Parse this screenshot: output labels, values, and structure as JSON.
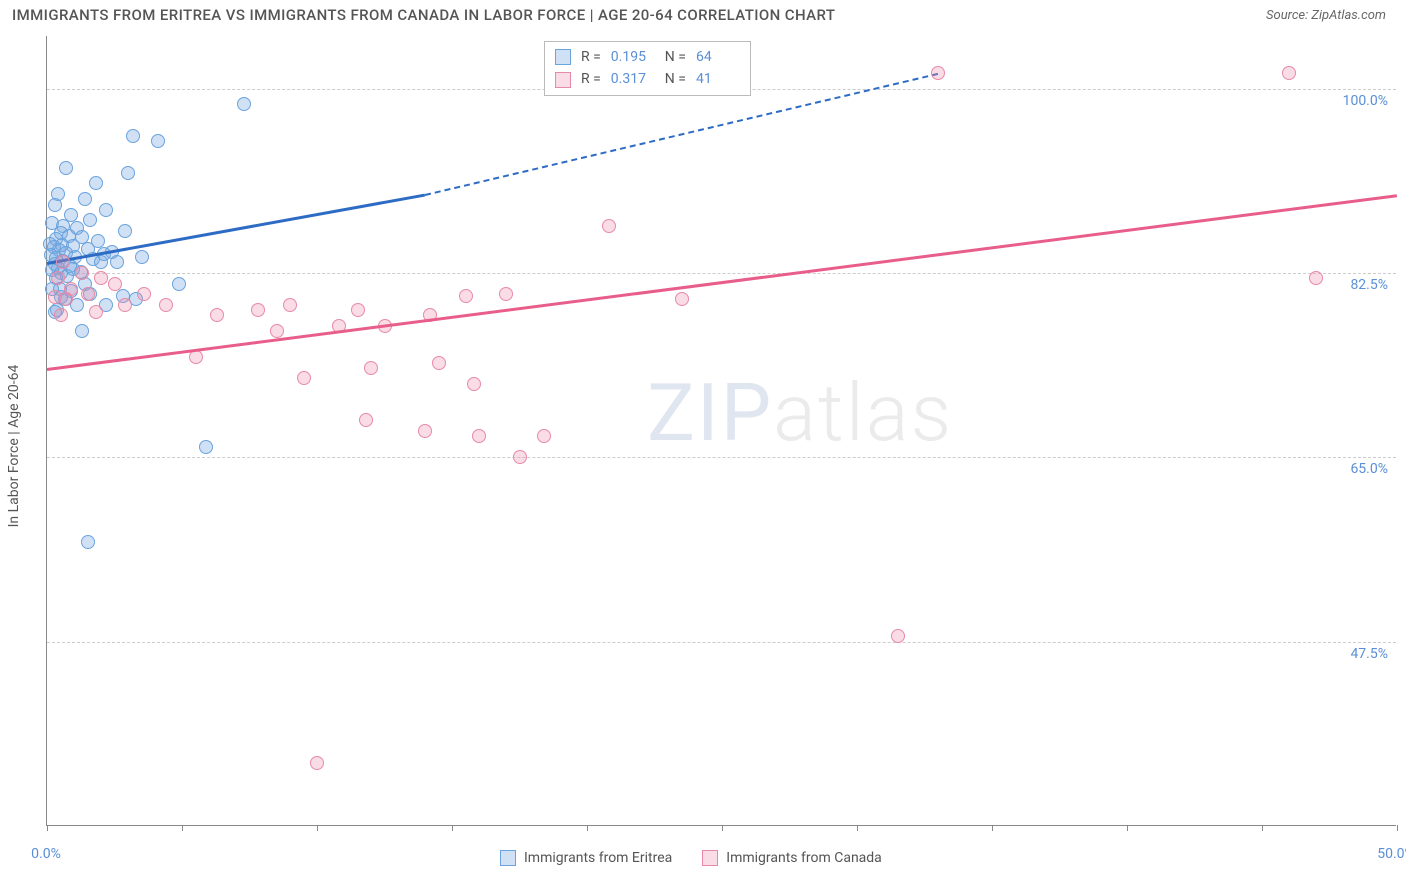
{
  "title": "IMMIGRANTS FROM ERITREA VS IMMIGRANTS FROM CANADA IN LABOR FORCE | AGE 20-64 CORRELATION CHART",
  "source": "Source: ZipAtlas.com",
  "y_axis_label": "In Labor Force | Age 20-64",
  "watermark": {
    "text1": "ZIP",
    "text2": "atlas"
  },
  "chart": {
    "type": "scatter-correlation",
    "background_color": "#ffffff",
    "grid_color": "#cccccc",
    "axis_color": "#888888",
    "text_color": "#555555",
    "value_color": "#5a8fd6",
    "marker_radius": 7,
    "marker_stroke_width": 1.2,
    "x_range": [
      0.0,
      50.0
    ],
    "y_range": [
      30.0,
      105.0
    ],
    "x_ticks": [
      0.0,
      5.0,
      10.0,
      15.0,
      20.0,
      25.0,
      30.0,
      35.0,
      40.0,
      45.0,
      50.0
    ],
    "x_tick_labels": {
      "0": "0.0%",
      "50": "50.0%"
    },
    "y_gridlines": [
      47.5,
      65.0,
      82.5,
      100.0
    ],
    "y_tick_labels": [
      "47.5%",
      "65.0%",
      "82.5%",
      "100.0%"
    ],
    "series": [
      {
        "name": "Immigrants from Eritrea",
        "color_fill": "rgba(120,170,225,0.35)",
        "color_stroke": "#6aa3dd",
        "trend_color": "#2d6bc4",
        "R_label": "R =",
        "R": "0.195",
        "N_label": "N =",
        "N": "64",
        "trend_start": [
          0.0,
          83.5
        ],
        "trend_solid_end": [
          14.0,
          90.0
        ],
        "trend_dashed_end": [
          33.0,
          101.5
        ],
        "points": [
          [
            7.3,
            98.5
          ],
          [
            3.2,
            95.5
          ],
          [
            4.1,
            95.0
          ],
          [
            0.7,
            92.5
          ],
          [
            3.0,
            92.0
          ],
          [
            1.8,
            91.0
          ],
          [
            0.4,
            90.0
          ],
          [
            1.4,
            89.5
          ],
          [
            0.3,
            89.0
          ],
          [
            2.2,
            88.5
          ],
          [
            0.9,
            88.0
          ],
          [
            1.6,
            87.5
          ],
          [
            0.2,
            87.2
          ],
          [
            0.6,
            87.0
          ],
          [
            1.1,
            86.8
          ],
          [
            2.9,
            86.5
          ],
          [
            0.5,
            86.3
          ],
          [
            0.8,
            86.0
          ],
          [
            1.3,
            85.9
          ],
          [
            0.35,
            85.7
          ],
          [
            1.9,
            85.5
          ],
          [
            0.1,
            85.3
          ],
          [
            0.55,
            85.2
          ],
          [
            0.95,
            85.1
          ],
          [
            0.25,
            85.0
          ],
          [
            1.5,
            84.8
          ],
          [
            0.45,
            84.7
          ],
          [
            2.4,
            84.5
          ],
          [
            0.7,
            84.4
          ],
          [
            0.15,
            84.2
          ],
          [
            1.05,
            84.0
          ],
          [
            0.32,
            83.9
          ],
          [
            1.7,
            83.8
          ],
          [
            0.6,
            83.6
          ],
          [
            3.5,
            84.0
          ],
          [
            0.28,
            83.4
          ],
          [
            0.85,
            83.2
          ],
          [
            0.42,
            83.0
          ],
          [
            2.0,
            83.5
          ],
          [
            0.18,
            82.8
          ],
          [
            1.25,
            82.6
          ],
          [
            0.52,
            82.5
          ],
          [
            0.75,
            82.2
          ],
          [
            0.34,
            82.0
          ],
          [
            2.6,
            83.5
          ],
          [
            1.4,
            81.5
          ],
          [
            0.48,
            81.0
          ],
          [
            0.2,
            81.0
          ],
          [
            0.9,
            80.8
          ],
          [
            4.9,
            81.5
          ],
          [
            1.6,
            80.5
          ],
          [
            2.8,
            80.3
          ],
          [
            0.65,
            80.0
          ],
          [
            1.1,
            79.5
          ],
          [
            0.38,
            79.0
          ],
          [
            2.2,
            79.5
          ],
          [
            0.3,
            78.8
          ],
          [
            0.95,
            82.9
          ],
          [
            3.3,
            80.0
          ],
          [
            1.3,
            77.0
          ],
          [
            0.5,
            80.2
          ],
          [
            5.9,
            66.0
          ],
          [
            1.5,
            57.0
          ],
          [
            2.1,
            84.3
          ]
        ]
      },
      {
        "name": "Immigrants from Canada",
        "color_fill": "rgba(235,140,170,0.30)",
        "color_stroke": "#e88aa7",
        "trend_color": "#e85d8a",
        "R_label": "R =",
        "R": "0.317",
        "N_label": "N =",
        "N": "41",
        "trend_start": [
          0.0,
          73.5
        ],
        "trend_solid_end": [
          50.0,
          90.0
        ],
        "trend_dashed_end": null,
        "points": [
          [
            33.0,
            101.5
          ],
          [
            46.0,
            101.5
          ],
          [
            20.8,
            87.0
          ],
          [
            0.6,
            83.5
          ],
          [
            1.3,
            82.5
          ],
          [
            0.4,
            82.0
          ],
          [
            2.0,
            82.0
          ],
          [
            0.9,
            81.0
          ],
          [
            1.5,
            80.5
          ],
          [
            0.3,
            80.2
          ],
          [
            2.5,
            81.5
          ],
          [
            3.6,
            80.5
          ],
          [
            0.7,
            80.0
          ],
          [
            17.0,
            80.5
          ],
          [
            15.5,
            80.3
          ],
          [
            9.0,
            79.5
          ],
          [
            4.4,
            79.5
          ],
          [
            2.9,
            79.5
          ],
          [
            11.5,
            79.0
          ],
          [
            1.8,
            78.8
          ],
          [
            6.3,
            78.5
          ],
          [
            23.5,
            80.0
          ],
          [
            0.5,
            78.5
          ],
          [
            14.2,
            78.5
          ],
          [
            7.8,
            79.0
          ],
          [
            10.8,
            77.5
          ],
          [
            12.5,
            77.5
          ],
          [
            8.5,
            77.0
          ],
          [
            5.5,
            74.5
          ],
          [
            12.0,
            73.5
          ],
          [
            14.5,
            74.0
          ],
          [
            9.5,
            72.5
          ],
          [
            15.8,
            72.0
          ],
          [
            11.8,
            68.5
          ],
          [
            14.0,
            67.5
          ],
          [
            16.0,
            67.0
          ],
          [
            18.4,
            67.0
          ],
          [
            17.5,
            65.0
          ],
          [
            31.5,
            48.0
          ],
          [
            10.0,
            36.0
          ],
          [
            47.0,
            82.0
          ]
        ]
      }
    ]
  },
  "bottom_legend": {
    "items": [
      "Immigrants from Eritrea",
      "Immigrants from Canada"
    ]
  }
}
